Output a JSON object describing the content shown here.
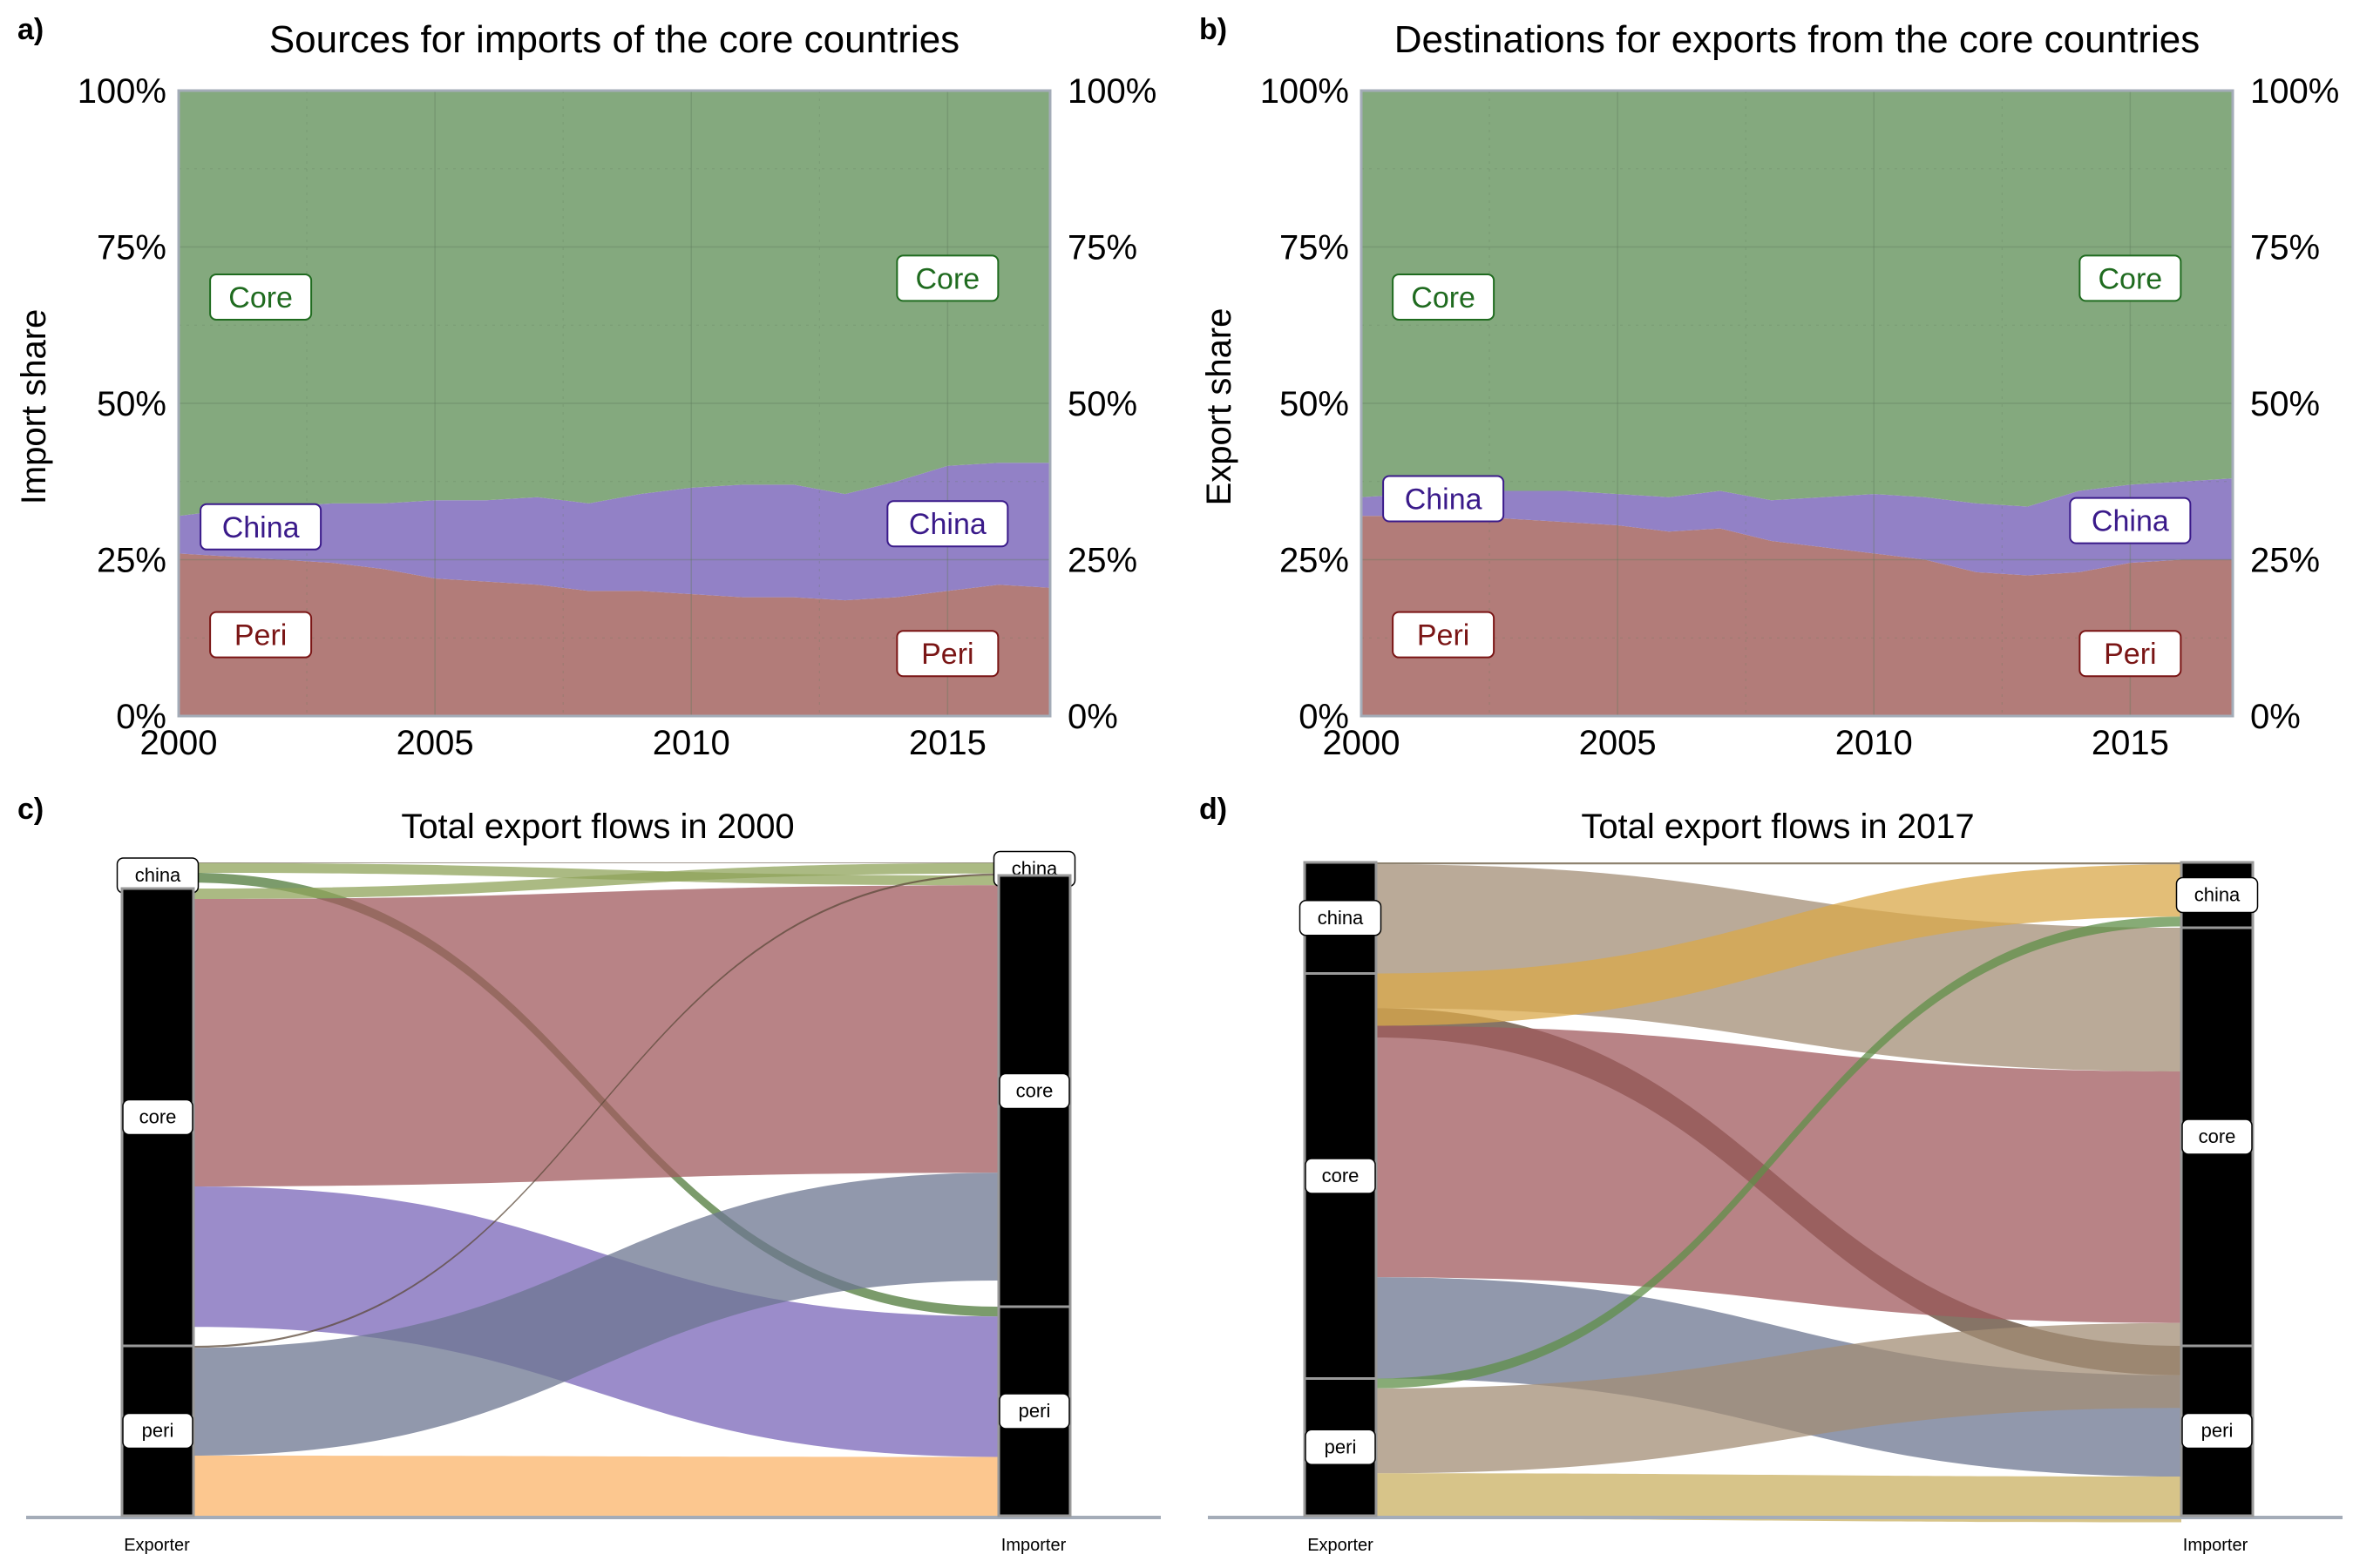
{
  "panels": {
    "a": {
      "letter": "a)",
      "title": "Sources for imports of the core countries",
      "ylabel": "Import share"
    },
    "b": {
      "letter": "b)",
      "title": "Destinations for exports from the core countries",
      "ylabel": "Export share"
    },
    "c": {
      "letter": "c)",
      "title": "Total export flows in 2000",
      "left_axis": "Exporter",
      "right_axis": "Importer"
    },
    "d": {
      "letter": "d)",
      "title": "Total export flows in 2017",
      "left_axis": "Exporter",
      "right_axis": "Importer"
    }
  },
  "colors": {
    "core": "#84a97e",
    "china": "#9281c6",
    "peri": "#b27c79",
    "core_text": "#1f6b1f",
    "china_text": "#3a1a8a",
    "peri_text": "#7a1515"
  },
  "chart_data": [
    {
      "type": "area",
      "id": "a",
      "title": "Sources for imports of the core countries",
      "ylabel": "Import share",
      "xlim": [
        2000,
        2017
      ],
      "ylim": [
        0,
        100
      ],
      "xticks": [
        "2000",
        "2005",
        "2010",
        "2015"
      ],
      "yticks": [
        "0%",
        "25%",
        "50%",
        "75%",
        "100%"
      ],
      "grid": true,
      "x": [
        2000,
        2001,
        2002,
        2003,
        2004,
        2005,
        2006,
        2007,
        2008,
        2009,
        2010,
        2011,
        2012,
        2013,
        2014,
        2015,
        2016,
        2017
      ],
      "series": [
        {
          "name": "Peri",
          "values": [
            26,
            25.5,
            25,
            24.5,
            23.5,
            22,
            21.5,
            21,
            20,
            20,
            19.5,
            19,
            19,
            18.5,
            19,
            20,
            21,
            20.5
          ]
        },
        {
          "name": "China",
          "values": [
            6,
            7.5,
            8.5,
            9.5,
            10.5,
            12.5,
            13,
            14,
            14,
            15.5,
            17,
            18,
            18,
            17,
            18.5,
            20,
            19.5,
            20
          ]
        },
        {
          "name": "Core",
          "values": [
            68,
            67,
            66.5,
            66,
            66,
            65.5,
            65.5,
            65,
            66,
            64.5,
            63.5,
            63,
            63,
            64.5,
            62.5,
            60,
            59.5,
            59.5
          ]
        }
      ],
      "labels_left": [
        "Core",
        "China",
        "Peri"
      ],
      "labels_right": [
        "Core",
        "China",
        "Peri"
      ]
    },
    {
      "type": "area",
      "id": "b",
      "title": "Destinations for exports from the core countries",
      "ylabel": "Export share",
      "xlim": [
        2000,
        2017
      ],
      "ylim": [
        0,
        100
      ],
      "xticks": [
        "2000",
        "2005",
        "2010",
        "2015"
      ],
      "yticks": [
        "0%",
        "25%",
        "50%",
        "75%",
        "100%"
      ],
      "grid": true,
      "x": [
        2000,
        2001,
        2002,
        2003,
        2004,
        2005,
        2006,
        2007,
        2008,
        2009,
        2010,
        2011,
        2012,
        2013,
        2014,
        2015,
        2016,
        2017
      ],
      "series": [
        {
          "name": "Peri",
          "values": [
            32,
            32,
            32,
            31.5,
            31,
            30.5,
            29.5,
            30,
            28,
            27,
            26,
            25,
            23,
            22.5,
            23,
            24.5,
            25,
            25
          ]
        },
        {
          "name": "China",
          "values": [
            3,
            3.5,
            4,
            4.5,
            5,
            5,
            5.5,
            6,
            6.5,
            8,
            9.5,
            10,
            11,
            11,
            13,
            12.5,
            12.5,
            13
          ]
        },
        {
          "name": "Core",
          "values": [
            65,
            64.5,
            64,
            64,
            64,
            64.5,
            65,
            64,
            65.5,
            65,
            64.5,
            65,
            66,
            66.5,
            64,
            63,
            62.5,
            62
          ]
        }
      ],
      "labels_left": [
        "Core",
        "China",
        "Peri"
      ],
      "labels_right": [
        "Core",
        "China",
        "Peri"
      ]
    },
    {
      "type": "alluvial",
      "id": "c",
      "title": "Total export flows in 2000",
      "axes": [
        "Exporter",
        "Importer"
      ],
      "nodes_left": [
        "china",
        "core",
        "peri"
      ],
      "nodes_right": [
        "china",
        "core",
        "peri"
      ],
      "node_totals_left": {
        "china": 4,
        "core": 70,
        "peri": 26
      },
      "node_totals_right": {
        "china": 2,
        "core": 66,
        "peri": 32
      },
      "flows": [
        {
          "from": "china",
          "to": "china",
          "value": 0.1,
          "color": "#5a4a3a"
        },
        {
          "from": "china",
          "to": "core",
          "value": 1.5,
          "color": "#8fa35a"
        },
        {
          "from": "china",
          "to": "peri",
          "value": 1.5,
          "color": "#4f7a3a"
        },
        {
          "from": "core",
          "to": "china",
          "value": 1.6,
          "color": "#8fa35a"
        },
        {
          "from": "core",
          "to": "core",
          "value": 44,
          "color": "#a05a5e"
        },
        {
          "from": "core",
          "to": "peri",
          "value": 21.5,
          "color": "#7a66b8"
        },
        {
          "from": "peri",
          "to": "china",
          "value": 0.3,
          "color": "#5c4a3a"
        },
        {
          "from": "peri",
          "to": "core",
          "value": 16.5,
          "color": "#6c7590"
        },
        {
          "from": "peri",
          "to": "peri",
          "value": 9.5,
          "color": "#fbb46a"
        }
      ]
    },
    {
      "type": "alluvial",
      "id": "d",
      "title": "Total export flows in 2017",
      "axes": [
        "Exporter",
        "Importer"
      ],
      "nodes_left": [
        "china",
        "core",
        "peri"
      ],
      "nodes_right": [
        "china",
        "core",
        "peri"
      ],
      "node_totals_left": {
        "china": 17,
        "core": 62,
        "peri": 21
      },
      "node_totals_right": {
        "china": 10,
        "core": 64,
        "peri": 26
      },
      "flows": [
        {
          "from": "china",
          "to": "china",
          "value": 0.3,
          "color": "#6a5a40"
        },
        {
          "from": "china",
          "to": "core",
          "value": 22,
          "color": "#a38e75"
        },
        {
          "from": "china",
          "to": "peri",
          "value": 4.5,
          "color": "#5d4533"
        },
        {
          "from": "core",
          "to": "china",
          "value": 8,
          "color": "#d9a84a"
        },
        {
          "from": "core",
          "to": "core",
          "value": 38.5,
          "color": "#a05a5e"
        },
        {
          "from": "core",
          "to": "peri",
          "value": 15.5,
          "color": "#6c7590"
        },
        {
          "from": "peri",
          "to": "china",
          "value": 1.5,
          "color": "#5f8f48"
        },
        {
          "from": "peri",
          "to": "core",
          "value": 13,
          "color": "#a38e75"
        },
        {
          "from": "peri",
          "to": "peri",
          "value": 7,
          "color": "#c9b062"
        }
      ]
    }
  ]
}
